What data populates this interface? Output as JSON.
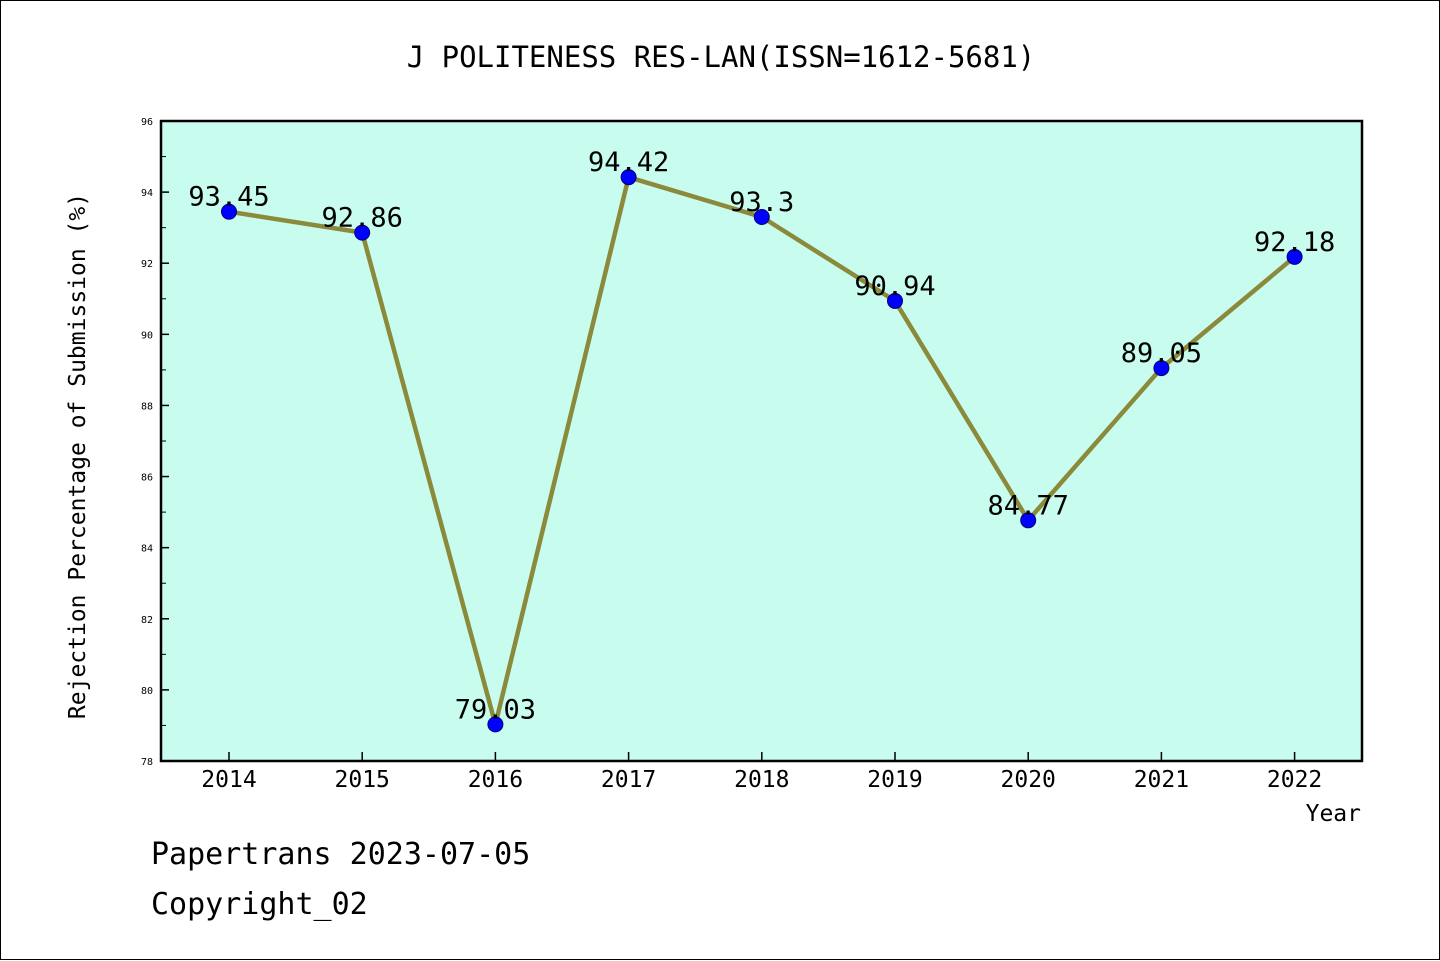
{
  "chart_data": {
    "type": "line",
    "title": "J POLITENESS RES-LAN(ISSN=1612-5681)",
    "xlabel": "Year",
    "ylabel": "Rejection Percentage of Submission (%)",
    "categories": [
      "2014",
      "2015",
      "2016",
      "2017",
      "2018",
      "2019",
      "2020",
      "2021",
      "2022"
    ],
    "series": [
      {
        "values": [
          93.45,
          92.86,
          79.03,
          94.42,
          93.3,
          90.94,
          84.77,
          89.05,
          92.18
        ],
        "labels": [
          "93.45",
          "92.86",
          "79.03",
          "94.42",
          "93.3",
          "90.94",
          "84.77",
          "89.05",
          "92.18"
        ]
      }
    ],
    "ylim": [
      78,
      96
    ],
    "yticks": [
      "78",
      "80",
      "82",
      "84",
      "86",
      "88",
      "90",
      "92",
      "94",
      "96"
    ],
    "grid": false,
    "colors": {
      "plot_background": "#c8fcee",
      "line": "#8b8a3a",
      "marker": "#0000ff"
    }
  },
  "footer": {
    "source": "Papertrans 2023-07-05",
    "copyright": "Copyright_02"
  }
}
